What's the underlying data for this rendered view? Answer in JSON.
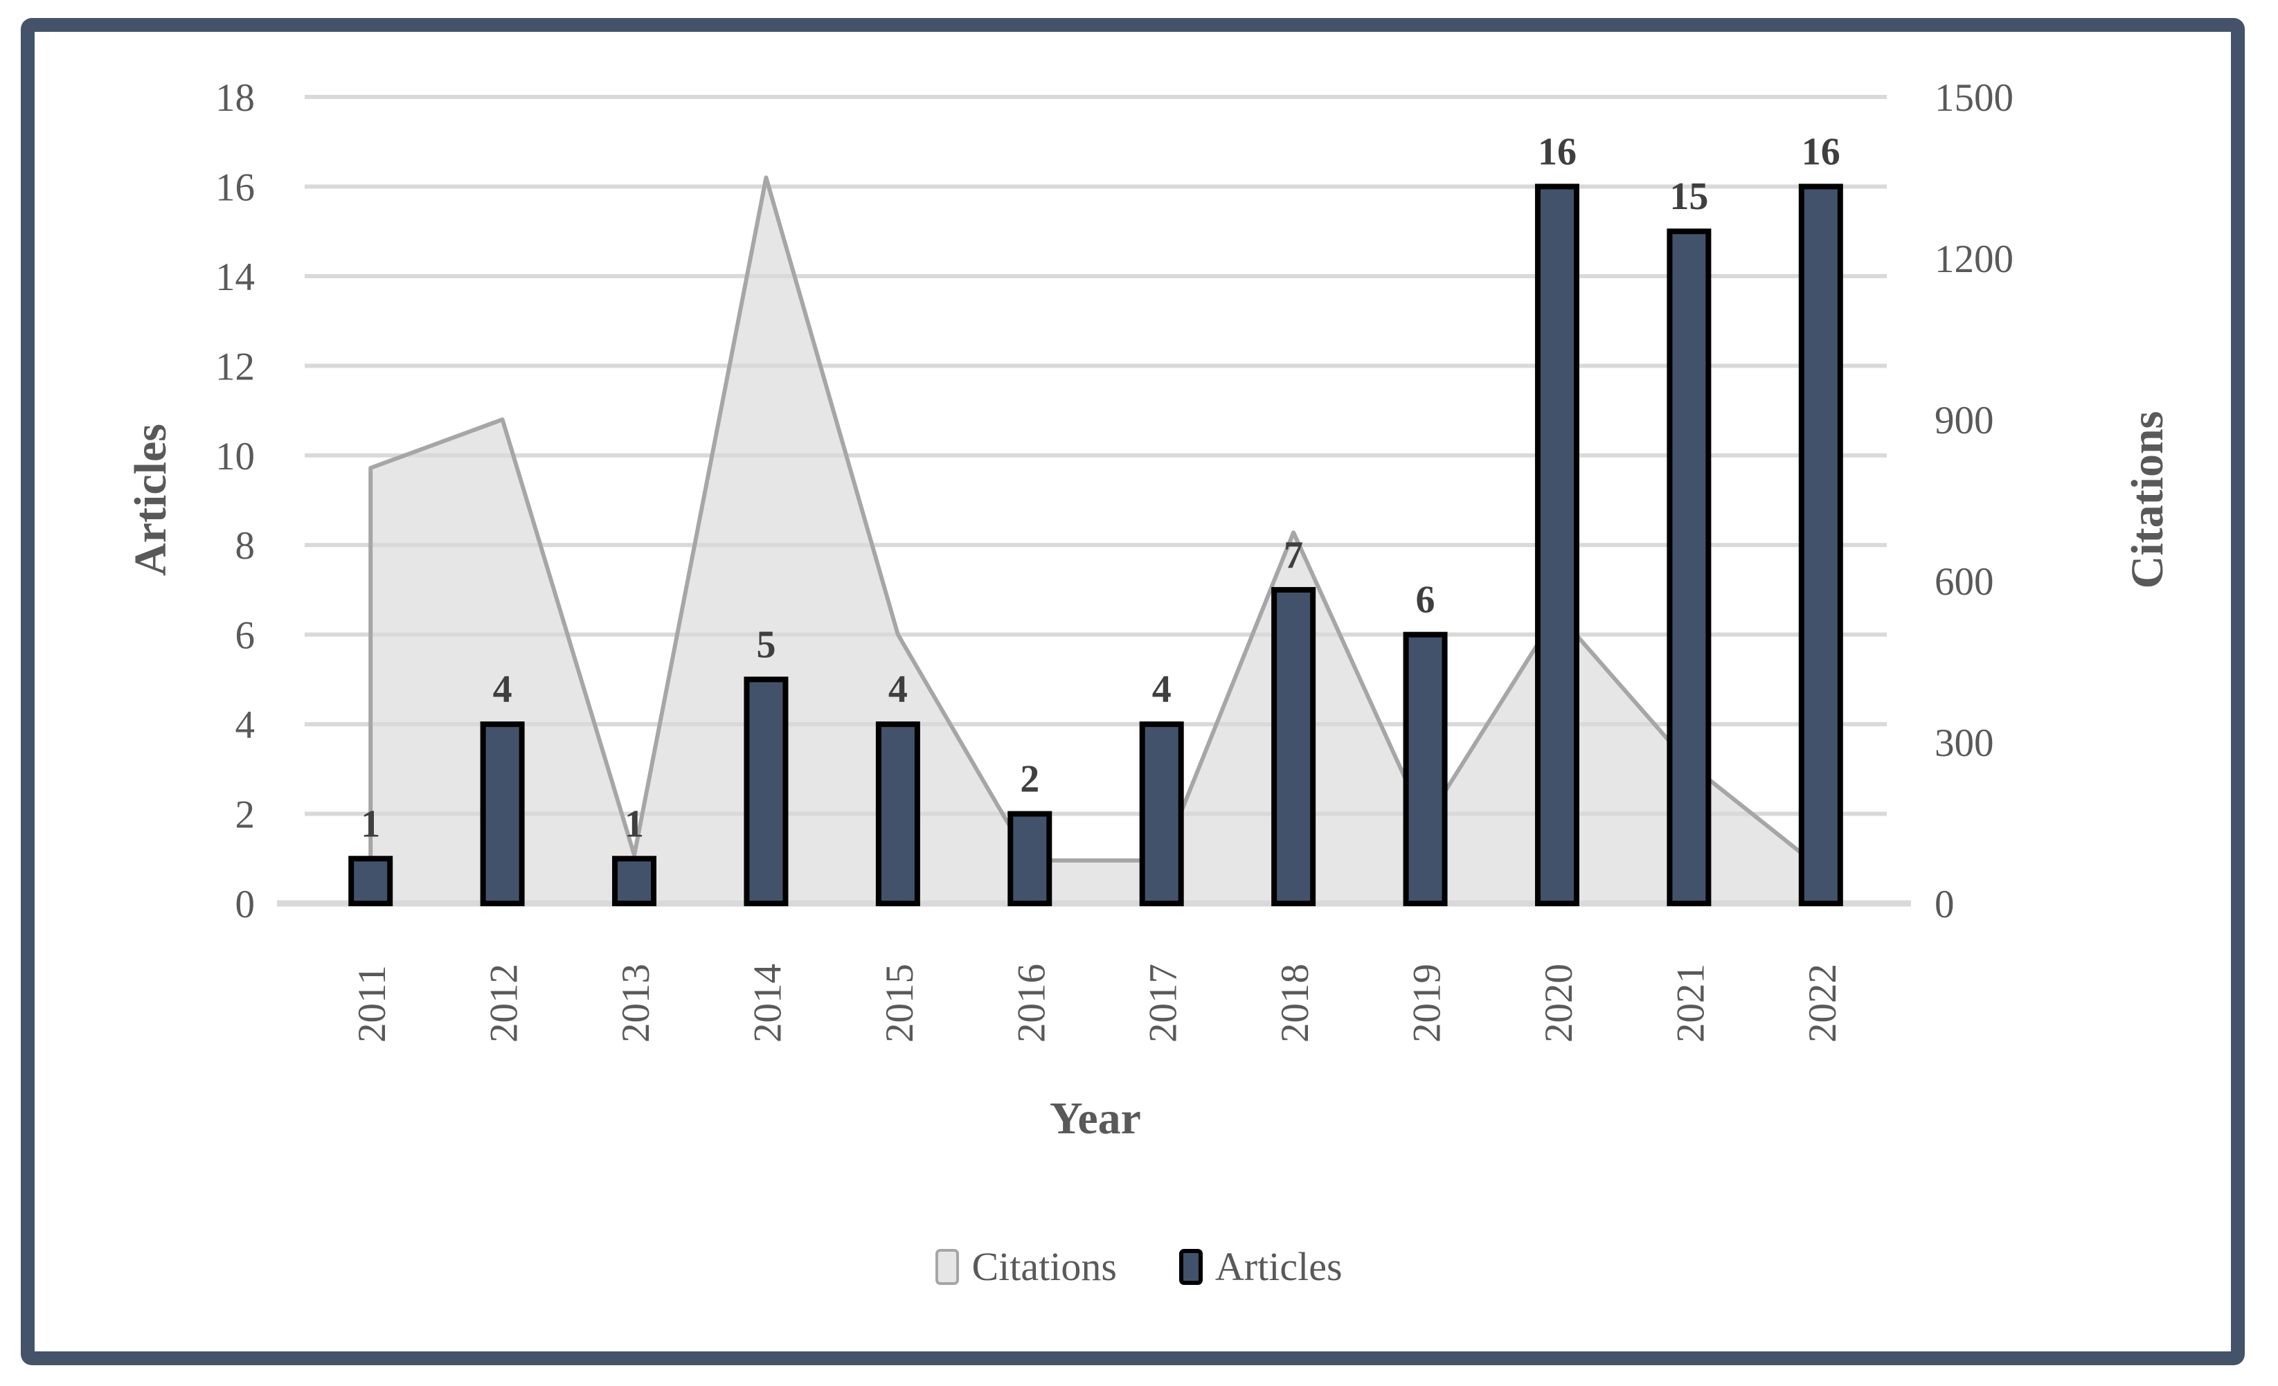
{
  "chart_data": {
    "type": "combo-area-bar",
    "categories": [
      "2011",
      "2012",
      "2013",
      "2014",
      "2015",
      "2016",
      "2017",
      "2018",
      "2019",
      "2020",
      "2021",
      "2022"
    ],
    "series": [
      {
        "name": "Citations",
        "type": "area",
        "axis": "right",
        "values": [
          810,
          900,
          90,
          1350,
          500,
          80,
          80,
          690,
          150,
          540,
          260,
          65
        ]
      },
      {
        "name": "Articles",
        "type": "bar",
        "axis": "left",
        "values": [
          1,
          4,
          1,
          5,
          4,
          2,
          4,
          7,
          6,
          16,
          15,
          16
        ]
      }
    ],
    "bar_labels": [
      "1",
      "4",
      "1",
      "5",
      "4",
      "2",
      "4",
      "7",
      "6",
      "16",
      "15",
      "16"
    ],
    "xlabel": "Year",
    "ylabel_left": "Articles",
    "ylabel_right": "Citations",
    "left_axis": {
      "min": 0,
      "max": 18,
      "step": 2,
      "ticks": [
        0,
        2,
        4,
        6,
        8,
        10,
        12,
        14,
        16,
        18
      ]
    },
    "right_axis": {
      "min": 0,
      "max": 1500,
      "step": 300,
      "ticks": [
        0,
        300,
        600,
        900,
        1200,
        1500
      ]
    },
    "grid": true,
    "legend_position": "bottom",
    "legend": [
      {
        "label": "Citations",
        "swatch": "#E6E6E6"
      },
      {
        "label": "Articles",
        "swatch": "#43526B"
      }
    ],
    "colors": {
      "bar_fill": "#43526B",
      "bar_stroke": "#000000",
      "area_fill": "#E6E6E6",
      "area_stroke": "#A6A6A6",
      "gridline": "#D9D9D9",
      "axis_line": "#D9D9D9",
      "tick_text": "#595959",
      "data_label": "#3F3F3F",
      "frame_border": "#44536A",
      "background": "#FFFFFF"
    }
  }
}
